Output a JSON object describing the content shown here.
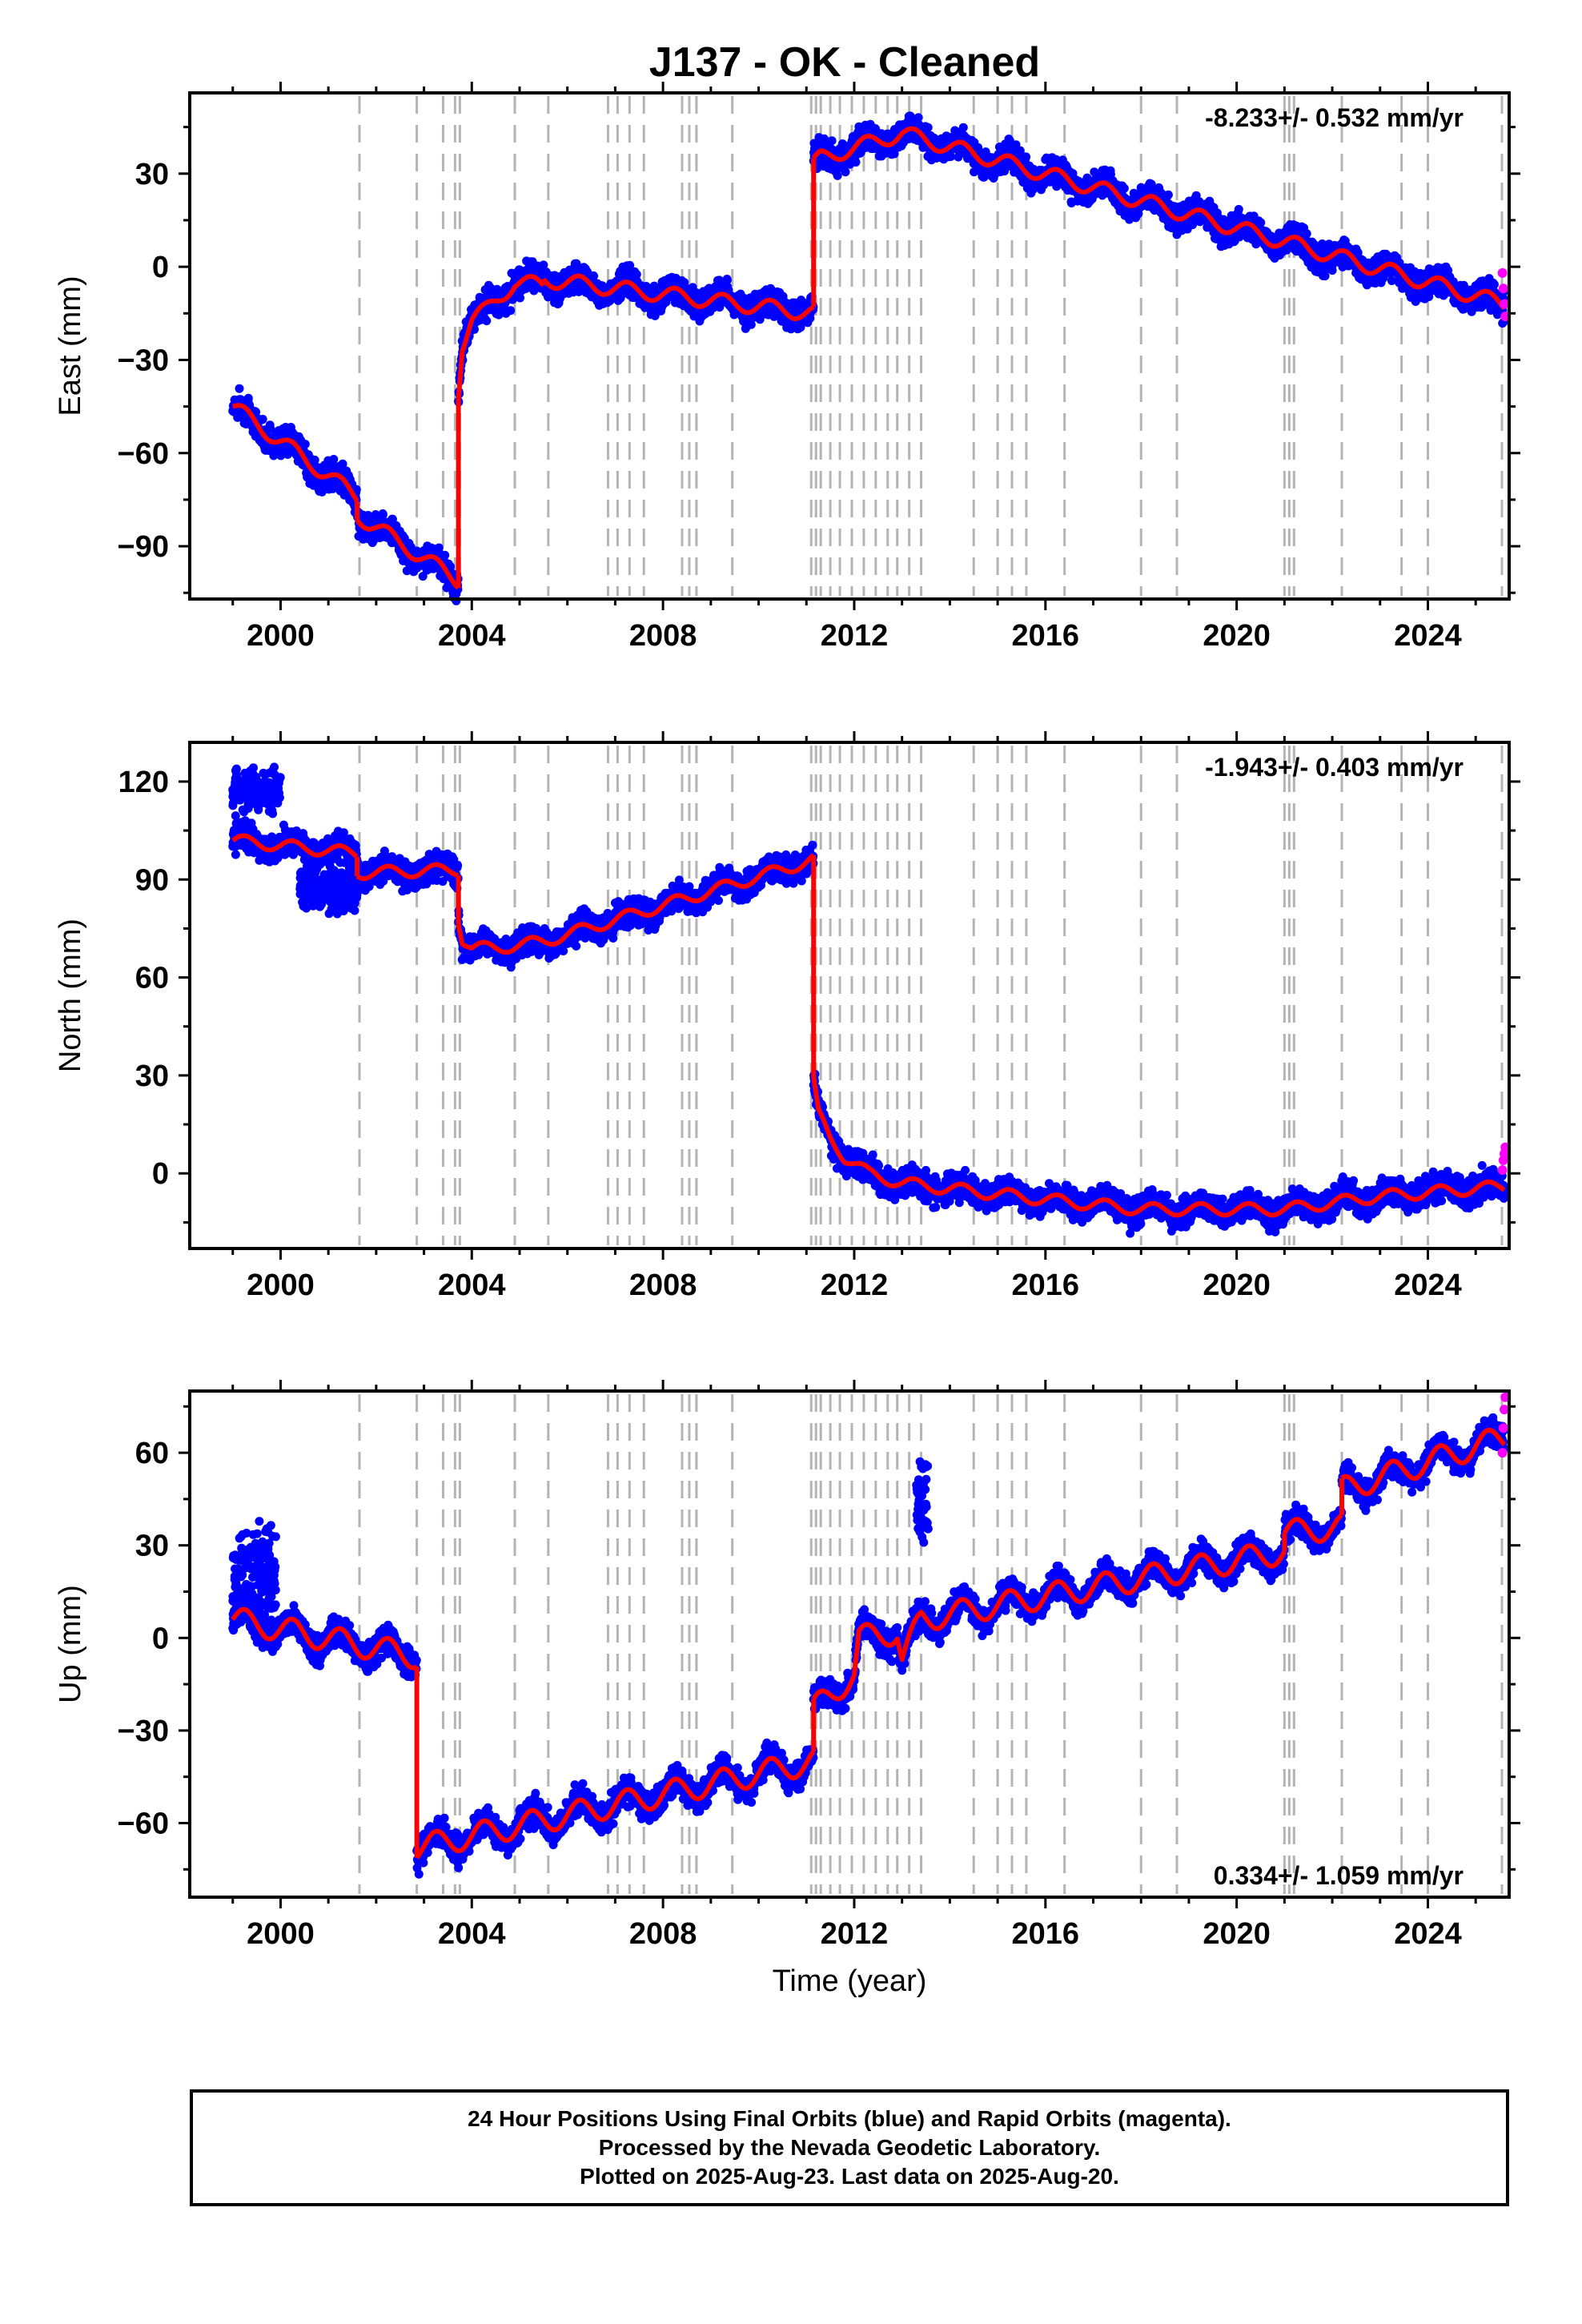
{
  "title": "J137  - OK - Cleaned",
  "xlabel": "Time (year)",
  "footer": [
    "24 Hour Positions Using Final Orbits (blue) and Rapid Orbits (magenta).",
    "Processed by the Nevada Geodetic Laboratory.",
    "Plotted on 2025-Aug-23. Last data on 2025-Aug-20."
  ],
  "colors": {
    "final": "#0000ff",
    "rapid": "#ff00ff",
    "model": "#ff0000",
    "event": "#b4b4b4"
  },
  "chart_data": [
    {
      "type": "scatter",
      "ylabel": "East (mm)",
      "rate_text": "-8.233+/- 0.532 mm/yr",
      "rate_position": "top-right",
      "xlim": [
        1998.1,
        2025.7
      ],
      "ylim": [
        -107,
        56
      ],
      "xticks": [
        2000,
        2004,
        2008,
        2012,
        2016,
        2020,
        2024
      ],
      "yticks": [
        -90,
        -60,
        -30,
        0,
        30
      ],
      "seasonal_amp": 2.5,
      "model_segments": [
        {
          "x": [
            1999.0,
            2001.6
          ],
          "y": [
            -45,
            -74
          ]
        },
        {
          "x": [
            2001.6,
            2003.72
          ],
          "y": [
            -80,
            -101
          ]
        },
        {
          "x": [
            2003.72,
            2003.8,
            2004.0,
            2004.3,
            2004.9,
            2005.5
          ],
          "y": [
            -40,
            -25,
            -17,
            -14,
            -5,
            -6
          ]
        },
        {
          "x": [
            2005.5,
            2011.15
          ],
          "y": [
            -4,
            -15
          ]
        },
        {
          "x": [
            2011.15,
            2011.3,
            2013.0,
            2025.6
          ],
          "y": [
            33,
            35,
            43,
            -12
          ]
        }
      ],
      "rapid_points": [
        [
          2025.56,
          -2
        ],
        [
          2025.58,
          -7
        ],
        [
          2025.6,
          -12
        ],
        [
          2025.62,
          -16
        ]
      ]
    },
    {
      "type": "scatter",
      "ylabel": "North (mm)",
      "rate_text": "-1.943+/- 0.403 mm/yr",
      "rate_position": "top-right",
      "xlim": [
        1998.1,
        2025.7
      ],
      "ylim": [
        -23,
        132
      ],
      "xticks": [
        2000,
        2004,
        2008,
        2012,
        2016,
        2020,
        2024
      ],
      "yticks": [
        0,
        30,
        60,
        90,
        120
      ],
      "seasonal_amp": 1.8,
      "model_segments": [
        {
          "x": [
            1999.0,
            2001.6
          ],
          "y": [
            102,
            98
          ]
        },
        {
          "x": [
            2001.6,
            2003.72
          ],
          "y": [
            92,
            93
          ]
        },
        {
          "x": [
            2003.72,
            2003.8,
            2004.0,
            2004.5,
            2005.5
          ],
          "y": [
            78,
            72,
            69,
            69,
            71
          ]
        },
        {
          "x": [
            2005.5,
            2011.15
          ],
          "y": [
            71,
            96
          ]
        },
        {
          "x": [
            2011.15,
            2011.25,
            2011.5,
            2011.8,
            2012.3,
            2013.0,
            2016.0,
            2018.0,
            2021.0,
            2023.0,
            2025.6
          ],
          "y": [
            28,
            18,
            11,
            5,
            0,
            -3,
            -8,
            -11,
            -11,
            -7,
            -4
          ]
        }
      ],
      "scatter_extra": [
        {
          "x": [
            1999.0,
            2000.0
          ],
          "y_center": 117,
          "spread": 5
        },
        {
          "x": [
            2000.4,
            2001.6
          ],
          "y_center": 87,
          "spread": 5
        }
      ],
      "rapid_points": [
        [
          2025.56,
          1
        ],
        [
          2025.58,
          4
        ],
        [
          2025.6,
          6
        ],
        [
          2025.62,
          8
        ]
      ]
    },
    {
      "type": "scatter",
      "ylabel": "Up (mm)",
      "rate_text": "0.334+/- 1.059 mm/yr",
      "rate_position": "bottom-right",
      "xlim": [
        1998.1,
        2025.7
      ],
      "ylim": [
        -84,
        80
      ],
      "xticks": [
        2000,
        2004,
        2008,
        2012,
        2016,
        2020,
        2024
      ],
      "yticks": [
        -60,
        -30,
        0,
        30,
        60
      ],
      "seasonal_amp": 4,
      "model_segments": [
        {
          "x": [
            1999.0,
            2002.85
          ],
          "y": [
            6,
            -6
          ]
        },
        {
          "x": [
            2002.85,
            2011.15
          ],
          "y": [
            -68,
            -40
          ]
        },
        {
          "x": [
            2011.15,
            2012.0,
            2012.1,
            2012.9,
            2013.0,
            2013.4,
            2021.0
          ],
          "y": [
            -23,
            -12,
            0,
            2,
            -7,
            6,
            28
          ]
        },
        {
          "x": [
            2021.0,
            2022.2
          ],
          "y": [
            34,
            36
          ]
        },
        {
          "x": [
            2022.2,
            2025.6
          ],
          "y": [
            48,
            65
          ]
        }
      ],
      "scatter_extra": [
        {
          "x": [
            1999.0,
            1999.9
          ],
          "y_center": 20,
          "spread": 14
        },
        {
          "x": [
            2013.3,
            2013.55
          ],
          "y_center": 45,
          "spread": 10
        }
      ],
      "rapid_points": [
        [
          2025.56,
          60
        ],
        [
          2025.58,
          68
        ],
        [
          2025.6,
          74
        ],
        [
          2025.62,
          78
        ]
      ]
    }
  ],
  "event_lines": [
    2001.65,
    2002.85,
    2003.4,
    2003.65,
    2003.75,
    2004.9,
    2005.6,
    2006.85,
    2007.05,
    2007.3,
    2007.6,
    2008.4,
    2008.55,
    2008.7,
    2009.45,
    2011.1,
    2011.2,
    2011.3,
    2011.5,
    2011.7,
    2011.95,
    2012.2,
    2012.45,
    2012.7,
    2012.9,
    2013.15,
    2013.4,
    2014.5,
    2015.0,
    2015.3,
    2015.6,
    2016.4,
    2018.0,
    2018.75,
    2021.0,
    2021.1,
    2021.2,
    2022.2,
    2023.45,
    2024.0,
    2025.55
  ]
}
